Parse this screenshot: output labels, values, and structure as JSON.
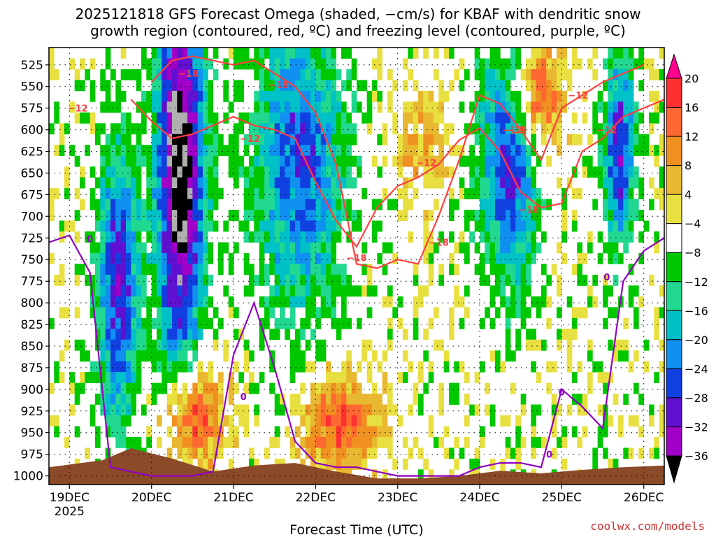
{
  "title": {
    "line1": "2025121818 GFS Forecast Omega (shaded, −cm/s) for KBAF with dendritic snow",
    "line2": "growth region (contoured, red, ºC) and freezing level (contoured, purple, ºC)"
  },
  "credit": "coolwx.com/models",
  "chart_data": {
    "type": "heatmap",
    "title": "2025121818 GFS Forecast Omega (shaded, −cm/s) for KBAF with dendritic snow growth region (contoured, red, ºC) and freezing level (contoured, purple, ºC)",
    "xlabel": "Forecast Time (UTC)",
    "ylabel": "",
    "x_ticks": [
      "19DEC",
      "20DEC",
      "21DEC",
      "22DEC",
      "23DEC",
      "24DEC",
      "25DEC",
      "26DEC"
    ],
    "x_tick_year": "2025",
    "y_ticks": [
      525,
      550,
      575,
      600,
      625,
      650,
      675,
      700,
      725,
      750,
      775,
      800,
      825,
      850,
      875,
      900,
      925,
      950,
      975,
      1000
    ],
    "xlim": [
      18.75,
      26.25
    ],
    "ylim": [
      1010,
      505
    ],
    "grid": true,
    "colorbar": {
      "ticks": [
        "20",
        "16",
        "12",
        "8",
        "4",
        "−4",
        "−8",
        "−12",
        "−16",
        "−20",
        "−24",
        "−28",
        "−32",
        "−36"
      ],
      "colors": [
        "#ff0090",
        "#ff3030",
        "#ff6830",
        "#f09020",
        "#e8b830",
        "#e8e040",
        "#ffffff",
        "#00c800",
        "#20d890",
        "#00c0c8",
        "#1090f0",
        "#1040e0",
        "#6010d0",
        "#a000c8",
        "#b0b0b0",
        "#000000"
      ]
    },
    "contour_labels": {
      "dgz": [
        "−12",
        "−18",
        "−12",
        "−18",
        "−18",
        "−12",
        "−18",
        "−12",
        "−18",
        "−12",
        "−12",
        "−18"
      ],
      "freezing": [
        "0",
        "0",
        "0",
        "0",
        "0"
      ]
    },
    "series": [
      {
        "color": "#ff4040",
        "x": [
          19.75,
          20.0,
          20.25,
          20.5,
          20.75,
          21.0,
          21.25,
          21.5,
          21.75,
          22.0,
          22.25,
          22.5,
          22.75,
          23.0,
          23.25,
          23.5,
          23.75,
          24.0,
          24.25,
          24.5,
          24.75,
          25.0,
          25.25,
          25.5,
          25.75,
          26.0,
          26.25
        ],
        "y": [
          565,
          590,
          610,
          605,
          595,
          585,
          595,
          600,
          610,
          660,
          705,
          735,
          690,
          665,
          655,
          640,
          612,
          598,
          625,
          672,
          690,
          685,
          625,
          610,
          585,
          575,
          565
        ]
      },
      {
        "color": "#ff4040",
        "x": [
          20.0,
          20.25,
          20.5,
          20.75,
          21.0,
          21.25,
          21.5,
          21.75,
          22.0,
          22.25,
          22.5,
          22.75,
          23.0,
          23.25,
          23.5,
          23.75,
          24.0,
          24.25,
          24.5,
          24.75,
          25.0,
          25.25,
          25.5,
          25.75,
          26.0
        ],
        "y": [
          545,
          520,
          515,
          520,
          525,
          520,
          535,
          550,
          580,
          640,
          755,
          760,
          750,
          755,
          700,
          635,
          560,
          570,
          600,
          635,
          575,
          560,
          545,
          535,
          525
        ]
      },
      {
        "color": "#9000c0",
        "x": [
          18.75,
          19.0,
          19.25,
          19.5,
          19.75,
          20.0,
          20.25,
          20.5,
          20.75,
          21.0,
          21.25,
          21.5,
          21.75,
          22.0,
          22.25,
          22.5,
          22.75,
          23.0,
          23.25,
          23.5,
          23.75,
          24.0,
          24.25,
          24.5,
          24.75,
          25.0,
          25.25,
          25.5,
          25.75,
          26.0,
          26.25
        ],
        "y": [
          730,
          722,
          765,
          990,
          995,
          1000,
          1000,
          1000,
          995,
          860,
          800,
          875,
          960,
          985,
          990,
          990,
          995,
          1000,
          1000,
          1000,
          1000,
          990,
          985,
          985,
          990,
          900,
          920,
          945,
          775,
          740,
          725
        ]
      }
    ]
  }
}
